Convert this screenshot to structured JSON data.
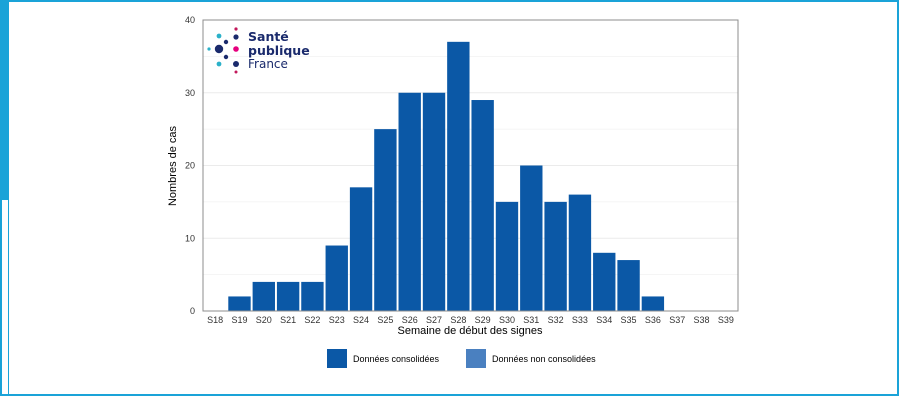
{
  "logo": {
    "line1": "Santé",
    "line2": "publique",
    "line3": "France"
  },
  "chart_data": {
    "type": "bar",
    "xlabel": "Semaine de début des signes",
    "ylabel": "Nombres de cas",
    "ylim": [
      0,
      40
    ],
    "yticks": [
      0,
      10,
      20,
      30,
      40
    ],
    "grid": true,
    "legend_position": "bottom",
    "categories": [
      "S18",
      "S19",
      "S20",
      "S21",
      "S22",
      "S23",
      "S24",
      "S25",
      "S26",
      "S27",
      "S28",
      "S29",
      "S30",
      "S31",
      "S32",
      "S33",
      "S34",
      "S35",
      "S36",
      "S37",
      "S38",
      "S39"
    ],
    "series": [
      {
        "name": "Données consolidées",
        "color": "#0b58a6",
        "values": [
          0,
          2,
          4,
          4,
          4,
          9,
          17,
          25,
          30,
          30,
          37,
          29,
          15,
          20,
          15,
          16,
          8,
          7,
          2,
          0,
          0,
          0
        ]
      },
      {
        "name": "Données non consolidées",
        "color": "#4a80c0",
        "values": [
          0,
          0,
          0,
          0,
          0,
          0,
          0,
          0,
          0,
          0,
          0,
          0,
          0,
          0,
          0,
          0,
          0,
          0,
          0,
          0,
          0,
          0
        ]
      }
    ]
  }
}
